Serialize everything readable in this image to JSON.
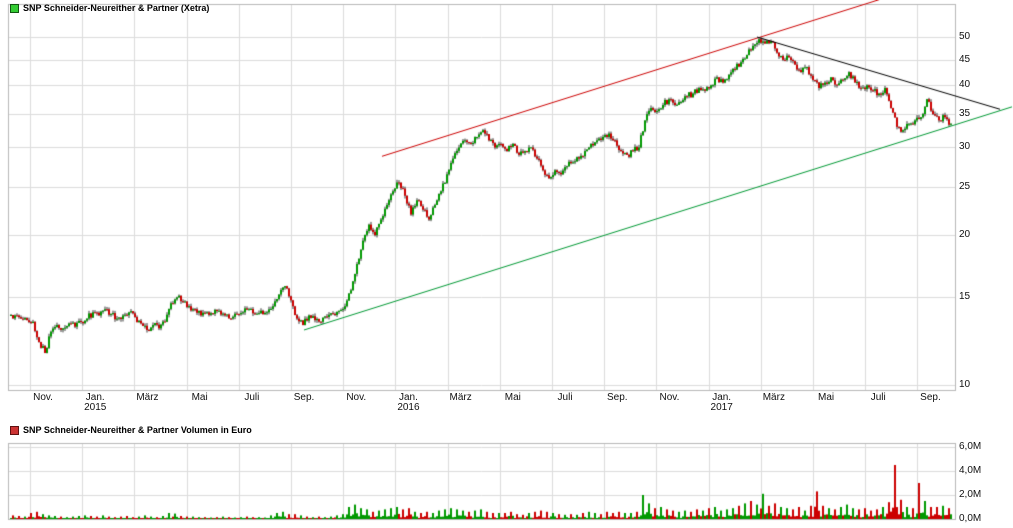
{
  "price_chart": {
    "legend": "SNP Schneider-Neureither & Partner (Xetra)",
    "marker_color": "#33cc33",
    "marker_border_color": "#115511"
  },
  "volume_chart": {
    "legend": "SNP Schneider-Neureither & Partner Volumen in Euro",
    "marker_color": "#cc3333",
    "marker_border_color": "#5f1111"
  },
  "chart_data": [
    {
      "type": "candlestick",
      "title": "SNP Schneider-Neureither & Partner (Xetra)",
      "y_scale": "log",
      "ylim": [
        9.8,
        58
      ],
      "grid": true,
      "legend_position": "top-left",
      "up_color": "#009900",
      "down_color": "#cc0000",
      "grid_color": "#dcdcdc",
      "y_ticks": [
        {
          "label": "50",
          "value": 50
        },
        {
          "label": "45",
          "value": 45
        },
        {
          "label": "40",
          "value": 40
        },
        {
          "label": "35",
          "value": 35
        },
        {
          "label": "30",
          "value": 30
        },
        {
          "label": "25",
          "value": 25
        },
        {
          "label": "20",
          "value": 20
        },
        {
          "label": "15",
          "value": 15
        },
        {
          "label": "10",
          "value": 10
        }
      ],
      "x_unit": "week",
      "x_ticks": [
        {
          "label": "Nov.",
          "month_index": 0
        },
        {
          "label": "Jan.",
          "month_index": 2
        },
        {
          "label": "März",
          "month_index": 4
        },
        {
          "label": "Mai",
          "month_index": 6
        },
        {
          "label": "Juli",
          "month_index": 8
        },
        {
          "label": "Sep.",
          "month_index": 10
        },
        {
          "label": "Nov.",
          "month_index": 12
        },
        {
          "label": "Jan.",
          "month_index": 14
        },
        {
          "label": "März",
          "month_index": 16
        },
        {
          "label": "Mai",
          "month_index": 18
        },
        {
          "label": "Juli",
          "month_index": 20
        },
        {
          "label": "Sep.",
          "month_index": 22
        },
        {
          "label": "Nov.",
          "month_index": 24
        },
        {
          "label": "Jan.",
          "month_index": 26
        },
        {
          "label": "März",
          "month_index": 28
        },
        {
          "label": "Mai",
          "month_index": 30
        },
        {
          "label": "Juli",
          "month_index": 32
        },
        {
          "label": "Sep.",
          "month_index": 34
        }
      ],
      "year_ticks": [
        {
          "label": "2015",
          "month_index": 2
        },
        {
          "label": "2016",
          "month_index": 14
        },
        {
          "label": "2017",
          "month_index": 26
        }
      ],
      "weekly_close": [
        13.8,
        13.6,
        13.5,
        13.4,
        12.2,
        11.6,
        12.8,
        13.2,
        13.0,
        13.3,
        13.1,
        13.4,
        13.6,
        14.0,
        13.8,
        14.2,
        13.9,
        13.6,
        13.8,
        14.0,
        13.7,
        13.3,
        12.9,
        13.2,
        13.0,
        13.4,
        14.6,
        15.0,
        14.7,
        14.4,
        14.2,
        13.8,
        14.0,
        13.9,
        14.1,
        13.8,
        13.6,
        13.9,
        14.0,
        14.2,
        13.9,
        14.1,
        14.0,
        14.4,
        15.2,
        15.8,
        14.8,
        13.6,
        13.2,
        13.8,
        13.5,
        13.4,
        13.7,
        13.9,
        14.1,
        14.4,
        15.5,
        17.5,
        19.5,
        21.0,
        20.0,
        21.5,
        23.0,
        24.5,
        25.5,
        24.0,
        22.0,
        23.5,
        22.5,
        21.5,
        23.0,
        24.5,
        26.5,
        28.5,
        30.0,
        31.0,
        30.5,
        31.5,
        32.5,
        31.0,
        30.0,
        30.5,
        29.5,
        30.5,
        29.0,
        29.5,
        30.0,
        28.5,
        27.0,
        26.0,
        27.0,
        26.5,
        27.5,
        28.0,
        28.5,
        29.5,
        30.5,
        31.0,
        31.5,
        32.0,
        31.0,
        29.5,
        29.0,
        29.5,
        30.0,
        34.0,
        36.0,
        35.5,
        36.5,
        37.5,
        36.5,
        37.0,
        38.0,
        38.5,
        39.5,
        39.0,
        40.0,
        41.5,
        40.5,
        42.0,
        43.0,
        44.5,
        46.0,
        48.0,
        49.5,
        48.5,
        49.0,
        46.5,
        45.0,
        45.5,
        44.0,
        42.5,
        43.5,
        41.0,
        39.5,
        40.5,
        41.5,
        40.0,
        41.0,
        42.5,
        40.5,
        39.5,
        40.0,
        39.0,
        38.5,
        39.5,
        36.0,
        33.0,
        32.5,
        33.5,
        34.0,
        34.5,
        37.5,
        35.0,
        34.0,
        34.5,
        33.5
      ],
      "trendlines": [
        {
          "name": "rising-resistance",
          "color": "#cc0000",
          "from": {
            "week": 62,
            "price": 28.8
          },
          "to": {
            "week": 145,
            "price": 59.5
          }
        },
        {
          "name": "rising-support",
          "color": "#009933",
          "from": {
            "week": 49,
            "price": 12.9
          },
          "to": {
            "week": 167,
            "price": 36.2
          }
        },
        {
          "name": "descending-resistance",
          "color": "#000000",
          "from": {
            "week": 124.5,
            "price": 50.0
          },
          "to": {
            "week": 165,
            "price": 35.8
          }
        }
      ]
    },
    {
      "type": "bar",
      "title": "SNP Schneider-Neureither & Partner Volumen in Euro",
      "ylim": [
        0,
        6.3
      ],
      "grid": true,
      "y_ticks": [
        {
          "label": "6,0M",
          "value": 6
        },
        {
          "label": "4,0M",
          "value": 4
        },
        {
          "label": "2,0M",
          "value": 2
        },
        {
          "label": "0,0M",
          "value": 0
        }
      ],
      "weekly_peak_volume_millions": [
        0.3,
        0.25,
        0.2,
        0.5,
        0.6,
        0.4,
        0.3,
        0.25,
        0.2,
        0.15,
        0.2,
        0.25,
        0.3,
        0.25,
        0.2,
        0.3,
        0.2,
        0.15,
        0.2,
        0.25,
        0.15,
        0.2,
        0.3,
        0.2,
        0.15,
        0.25,
        0.5,
        0.45,
        0.25,
        0.2,
        0.2,
        0.15,
        0.15,
        0.12,
        0.15,
        0.2,
        0.15,
        0.12,
        0.15,
        0.2,
        0.15,
        0.15,
        0.12,
        0.3,
        0.5,
        0.6,
        0.4,
        0.4,
        0.3,
        0.2,
        0.15,
        0.2,
        0.15,
        0.2,
        0.3,
        0.4,
        1.0,
        1.2,
        0.9,
        0.8,
        0.6,
        0.7,
        0.8,
        0.9,
        1.0,
        0.8,
        0.9,
        0.6,
        0.5,
        0.6,
        0.5,
        0.7,
        0.8,
        0.9,
        0.8,
        0.7,
        0.6,
        0.7,
        0.8,
        0.6,
        0.5,
        0.5,
        0.5,
        0.6,
        0.4,
        0.35,
        0.5,
        0.6,
        0.7,
        0.6,
        0.5,
        0.4,
        0.35,
        0.4,
        0.35,
        0.5,
        0.6,
        0.5,
        0.4,
        0.6,
        0.5,
        0.6,
        0.5,
        0.5,
        0.6,
        2.0,
        1.3,
        0.9,
        1.0,
        0.8,
        0.7,
        0.6,
        0.7,
        0.6,
        0.8,
        0.7,
        0.9,
        1.0,
        0.7,
        0.8,
        0.9,
        1.1,
        1.3,
        1.5,
        1.2,
        2.1,
        1.1,
        1.3,
        1.0,
        0.9,
        0.8,
        1.0,
        0.7,
        1.1,
        2.3,
        1.1,
        0.9,
        0.8,
        1.0,
        1.2,
        0.9,
        0.8,
        0.9,
        0.7,
        0.8,
        1.0,
        1.4,
        4.5,
        1.6,
        1.0,
        0.9,
        3.0,
        1.5,
        1.0,
        1.0,
        1.1,
        0.9
      ]
    }
  ]
}
